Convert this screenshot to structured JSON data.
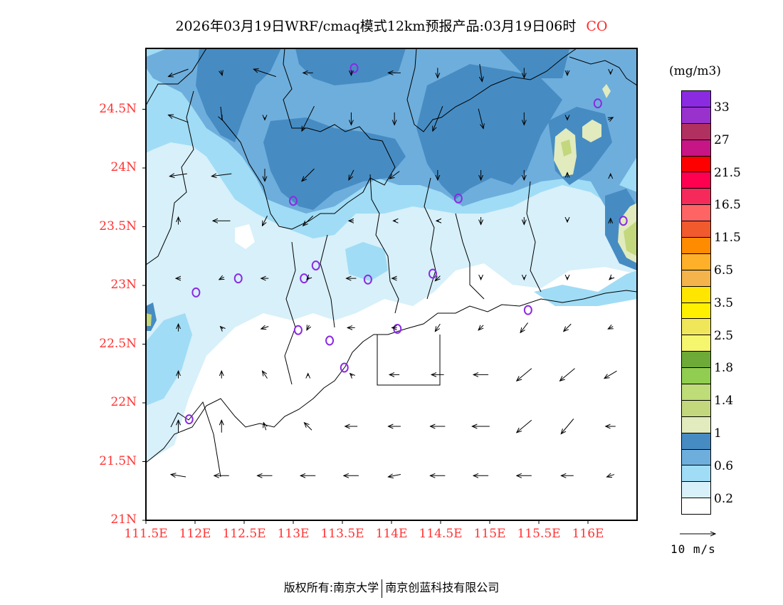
{
  "title": {
    "text": "2026年03月19日WRF/cmaq模式12km预报产品:03月19日06时",
    "species": "CO"
  },
  "map": {
    "lon_range": [
      111.5,
      116.5
    ],
    "lat_range": [
      21,
      25
    ],
    "lat_labels": [
      {
        "v": 21,
        "t": "21N"
      },
      {
        "v": 21.5,
        "t": "21.5N"
      },
      {
        "v": 22,
        "t": "22N"
      },
      {
        "v": 22.5,
        "t": "22.5N"
      },
      {
        "v": 23,
        "t": "23N"
      },
      {
        "v": 23.5,
        "t": "23.5N"
      },
      {
        "v": 24,
        "t": "24N"
      },
      {
        "v": 24.5,
        "t": "24.5N"
      }
    ],
    "lon_labels": [
      {
        "v": 111.5,
        "t": "111.5E"
      },
      {
        "v": 112,
        "t": "112E"
      },
      {
        "v": 112.5,
        "t": "112.5E"
      },
      {
        "v": 113,
        "t": "113E"
      },
      {
        "v": 113.5,
        "t": "113.5E"
      },
      {
        "v": 114,
        "t": "114E"
      },
      {
        "v": 114.5,
        "t": "114.5E"
      },
      {
        "v": 115,
        "t": "115E"
      },
      {
        "v": 115.5,
        "t": "115.5E"
      },
      {
        "v": 116,
        "t": "116E"
      }
    ],
    "stations": [
      [
        113.62,
        24.85
      ],
      [
        116.1,
        24.55
      ],
      [
        113.0,
        23.72
      ],
      [
        114.68,
        23.74
      ],
      [
        116.36,
        23.55
      ],
      [
        113.23,
        23.17
      ],
      [
        112.44,
        23.06
      ],
      [
        113.11,
        23.06
      ],
      [
        113.76,
        23.05
      ],
      [
        114.42,
        23.1
      ],
      [
        112.01,
        22.94
      ],
      [
        115.39,
        22.79
      ],
      [
        113.05,
        22.62
      ],
      [
        114.06,
        22.63
      ],
      [
        113.37,
        22.53
      ],
      [
        113.52,
        22.3
      ],
      [
        111.94,
        21.86
      ]
    ],
    "wind_grid": {
      "lons": [
        111.83,
        112.27,
        112.71,
        113.15,
        113.59,
        114.03,
        114.47,
        114.91,
        115.35,
        115.79,
        116.23
      ],
      "lats": [
        24.81,
        24.42,
        23.94,
        23.55,
        23.06,
        22.64,
        22.24,
        21.8,
        21.38
      ],
      "uv": [
        [
          [
            -8,
            -3
          ],
          [
            0.5,
            -2
          ],
          [
            -9,
            3
          ],
          [
            -4,
            0
          ],
          [
            0,
            -2
          ],
          [
            -5,
            0
          ],
          [
            0,
            -4
          ],
          [
            1,
            -7
          ],
          [
            0,
            -4
          ],
          [
            0,
            -2
          ],
          [
            0,
            -1
          ]
        ],
        [
          [
            -8,
            3
          ],
          [
            0,
            0
          ],
          [
            0,
            -1
          ],
          [
            -5,
            -10
          ],
          [
            0,
            -5
          ],
          [
            0,
            -5
          ],
          [
            -4,
            -10
          ],
          [
            2,
            -8
          ],
          [
            0,
            -5
          ],
          [
            0,
            -1
          ],
          [
            2,
            1
          ]
        ],
        [
          [
            -7,
            -1
          ],
          [
            -8,
            -1
          ],
          [
            0,
            -5
          ],
          [
            -5,
            -5
          ],
          [
            -2,
            -4
          ],
          [
            -4,
            -3
          ],
          [
            0,
            -4
          ],
          [
            0,
            -4
          ],
          [
            0,
            -4
          ],
          [
            0,
            2
          ],
          [
            0,
            1
          ]
        ],
        [
          [
            0,
            3
          ],
          [
            -7,
            0
          ],
          [
            -2,
            -4
          ],
          [
            -4,
            -4
          ],
          [
            -2,
            0
          ],
          [
            -1,
            0
          ],
          [
            -1,
            0
          ],
          [
            0,
            -3
          ],
          [
            0,
            -3
          ],
          [
            0,
            -1
          ],
          [
            0,
            2
          ]
        ],
        [
          [
            -2,
            0
          ],
          [
            -2,
            -1
          ],
          [
            -3,
            0
          ],
          [
            -1,
            -1
          ],
          [
            -4,
            0
          ],
          [
            -2,
            0
          ],
          [
            -2,
            -2
          ],
          [
            0,
            -1
          ],
          [
            0,
            -1
          ],
          [
            0,
            -1
          ],
          [
            -1,
            -1
          ]
        ],
        [
          [
            0,
            3
          ],
          [
            -1,
            1
          ],
          [
            -3,
            -1
          ],
          [
            -1,
            -2
          ],
          [
            -3,
            0
          ],
          [
            -2,
            0
          ],
          [
            -2,
            -3
          ],
          [
            -2,
            -2
          ],
          [
            -3,
            -4
          ],
          [
            -3,
            -3
          ],
          [
            -2,
            -1
          ]
        ],
        [
          [
            0,
            3
          ],
          [
            0,
            3
          ],
          [
            -2,
            3
          ],
          [
            0,
            1
          ],
          [
            -1,
            1
          ],
          [
            -4,
            0
          ],
          [
            -5,
            0
          ],
          [
            -6,
            0
          ],
          [
            -6,
            -5
          ],
          [
            -6,
            -5
          ],
          [
            -5,
            -3
          ]
        ],
        [
          [
            0,
            5
          ],
          [
            0,
            5
          ],
          [
            -1,
            3
          ],
          [
            -3,
            3
          ],
          [
            -5,
            0
          ],
          [
            -5,
            0
          ],
          [
            -6,
            0
          ],
          [
            -7,
            0
          ],
          [
            -6,
            -5
          ],
          [
            -5,
            -6
          ],
          [
            -4,
            0
          ]
        ],
        [
          [
            -6,
            1
          ],
          [
            -6,
            0
          ],
          [
            -6,
            0
          ],
          [
            -6,
            0
          ],
          [
            -6,
            0
          ],
          [
            -5,
            -1
          ],
          [
            -6,
            0
          ],
          [
            -6,
            0
          ],
          [
            -6,
            0
          ],
          [
            -5,
            0
          ],
          [
            -3,
            -1
          ]
        ]
      ]
    }
  },
  "legend": {
    "units": "(mg/m3)",
    "colors": [
      "#8a2be2",
      "#9932cc",
      "#b03060",
      "#c71585",
      "#ff0000",
      "#ff0050",
      "#f52a5a",
      "#ff6464",
      "#f05a2d",
      "#ff8c00",
      "#ffb02a",
      "#f5b44b",
      "#ffe600",
      "#fff000",
      "#f0e65a",
      "#f5f56e",
      "#6eaa37",
      "#91cd50",
      "#bedc78",
      "#c3d77d",
      "#e1ebbe",
      "#468cc3",
      "#6eaedc",
      "#a0dcf5",
      "#d7f0fa",
      "#ffffff"
    ],
    "labels": [
      "33",
      "27",
      "21.5",
      "16.5",
      "11.5",
      "6.5",
      "3.5",
      "2.5",
      "1.8",
      "1.4",
      "1",
      "0.6",
      "0.2"
    ],
    "wind_ref": "10 m/s"
  },
  "footer": {
    "left": "版权所有:南京大学",
    "right": "南京创蓝科技有限公司"
  }
}
